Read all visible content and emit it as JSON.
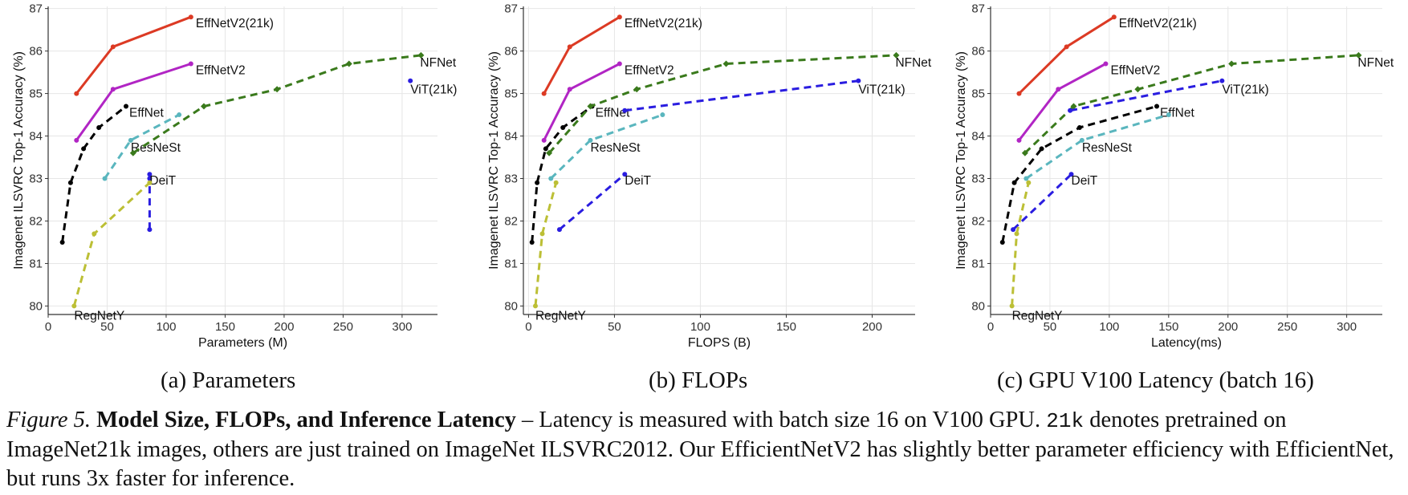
{
  "colors": {
    "EffNetV2(21k)": "#dc3a24",
    "EffNetV2": "#b125c4",
    "EffNet": "#000000",
    "ResNeSt": "#5ab6be",
    "NFNet": "#3a7a1c",
    "ViT(21k)": "#2a1de0",
    "DeiT": "#2a1de0",
    "RegNetY": "#bcbf35",
    "grid": "#e6e6e6",
    "axis": "#333333"
  },
  "chart_data": [
    {
      "type": "line",
      "title": "",
      "xlabel": "Parameters (M)",
      "ylabel": "Imagenet ILSVRC Top-1 Accuracy (%)",
      "xlim": [
        0,
        330
      ],
      "ylim": [
        79.8,
        87.05
      ],
      "xticks": [
        "0",
        "50",
        "100",
        "150",
        "200",
        "250",
        "300"
      ],
      "yticks": [
        "80",
        "81",
        "82",
        "83",
        "84",
        "85",
        "86",
        "87"
      ],
      "series": [
        {
          "name": "EffNetV2(21k)",
          "dashed": false,
          "label_at": "end",
          "x": [
            24,
            55,
            121
          ],
          "y": [
            85.0,
            86.1,
            86.8
          ]
        },
        {
          "name": "EffNetV2",
          "dashed": false,
          "label_at": "end",
          "x": [
            24,
            55,
            121
          ],
          "y": [
            83.9,
            85.1,
            85.7
          ]
        },
        {
          "name": "EffNet",
          "dashed": true,
          "label_at": "end",
          "x": [
            12,
            19,
            30,
            43,
            66
          ],
          "y": [
            81.5,
            82.9,
            83.7,
            84.2,
            84.7
          ]
        },
        {
          "name": "ResNeSt",
          "dashed": true,
          "label_at": "mid",
          "x": [
            48,
            70,
            111
          ],
          "y": [
            83.0,
            83.9,
            84.5
          ]
        },
        {
          "name": "NFNet",
          "dashed": true,
          "label_at": "end",
          "x": [
            72,
            132,
            194,
            255,
            316
          ],
          "y": [
            83.6,
            84.7,
            85.1,
            85.7,
            85.9
          ]
        },
        {
          "name": "ViT(21k)",
          "dashed": true,
          "label_at": "end",
          "x": [
            307
          ],
          "y": [
            85.3
          ]
        },
        {
          "name": "DeiT",
          "dashed": true,
          "label_at": "top",
          "x": [
            86,
            86,
            86
          ],
          "y": [
            81.8,
            83.0,
            83.1
          ]
        },
        {
          "name": "RegNetY",
          "dashed": true,
          "label_at": "start",
          "x": [
            22,
            39,
            86
          ],
          "y": [
            80.0,
            81.7,
            82.9
          ]
        }
      ]
    },
    {
      "type": "line",
      "title": "",
      "xlabel": "FLOPS (B)",
      "ylabel": "Imagenet ILSVRC Top-1 Accuracy (%)",
      "xlim": [
        -3,
        225
      ],
      "ylim": [
        79.8,
        87.05
      ],
      "xticks": [
        "0",
        "50",
        "100",
        "150",
        "200"
      ],
      "yticks": [
        "80",
        "81",
        "82",
        "83",
        "84",
        "85",
        "86",
        "87"
      ],
      "series": [
        {
          "name": "EffNetV2(21k)",
          "dashed": false,
          "label_at": "end",
          "x": [
            9,
            24,
            53
          ],
          "y": [
            85.0,
            86.1,
            86.8
          ]
        },
        {
          "name": "EffNetV2",
          "dashed": false,
          "label_at": "end",
          "x": [
            9,
            24,
            53
          ],
          "y": [
            83.9,
            85.1,
            85.7
          ]
        },
        {
          "name": "EffNet",
          "dashed": true,
          "label_at": "end",
          "x": [
            2,
            5,
            10,
            20,
            37
          ],
          "y": [
            81.5,
            82.9,
            83.7,
            84.2,
            84.7
          ]
        },
        {
          "name": "ResNeSt",
          "dashed": true,
          "label_at": "mid",
          "x": [
            13,
            36,
            78
          ],
          "y": [
            83.0,
            83.9,
            84.5
          ]
        },
        {
          "name": "NFNet",
          "dashed": true,
          "label_at": "end",
          "x": [
            12,
            36,
            63,
            115,
            214
          ],
          "y": [
            83.6,
            84.7,
            85.1,
            85.7,
            85.9
          ]
        },
        {
          "name": "ViT(21k)",
          "dashed": true,
          "label_at": "end",
          "x": [
            56,
            192
          ],
          "y": [
            84.6,
            85.3
          ]
        },
        {
          "name": "DeiT",
          "dashed": true,
          "label_at": "end",
          "x": [
            18,
            56
          ],
          "y": [
            81.8,
            83.1
          ]
        },
        {
          "name": "RegNetY",
          "dashed": true,
          "label_at": "start",
          "x": [
            4,
            8,
            16
          ],
          "y": [
            80.0,
            81.7,
            82.9
          ]
        }
      ]
    },
    {
      "type": "line",
      "title": "",
      "xlabel": "Latency(ms)",
      "ylabel": "Imagenet ILSVRC Top-1 Accuracy (%)",
      "xlim": [
        0,
        330
      ],
      "ylim": [
        79.8,
        87.05
      ],
      "xticks": [
        "0",
        "50",
        "100",
        "150",
        "200",
        "250",
        "300"
      ],
      "yticks": [
        "80",
        "81",
        "82",
        "83",
        "84",
        "85",
        "86",
        "87"
      ],
      "series": [
        {
          "name": "EffNetV2(21k)",
          "dashed": false,
          "label_at": "end",
          "x": [
            24,
            64,
            104
          ],
          "y": [
            85.0,
            86.1,
            86.8
          ]
        },
        {
          "name": "EffNetV2",
          "dashed": false,
          "label_at": "end",
          "x": [
            24,
            57,
            97
          ],
          "y": [
            83.9,
            85.1,
            85.7
          ]
        },
        {
          "name": "EffNet",
          "dashed": true,
          "label_at": "end",
          "x": [
            10,
            20,
            43,
            75,
            140
          ],
          "y": [
            81.5,
            82.9,
            83.7,
            84.2,
            84.7
          ]
        },
        {
          "name": "ResNeSt",
          "dashed": true,
          "label_at": "mid",
          "x": [
            30,
            77,
            150
          ],
          "y": [
            83.0,
            83.9,
            84.5
          ]
        },
        {
          "name": "NFNet",
          "dashed": true,
          "label_at": "end",
          "x": [
            29,
            70,
            124,
            203,
            310
          ],
          "y": [
            83.6,
            84.7,
            85.1,
            85.7,
            85.9
          ]
        },
        {
          "name": "ViT(21k)",
          "dashed": true,
          "label_at": "end",
          "x": [
            67,
            195
          ],
          "y": [
            84.6,
            85.3
          ]
        },
        {
          "name": "DeiT",
          "dashed": true,
          "label_at": "end",
          "x": [
            19,
            68
          ],
          "y": [
            81.8,
            83.1
          ]
        },
        {
          "name": "RegNetY",
          "dashed": true,
          "label_at": "start",
          "x": [
            18,
            22,
            32
          ],
          "y": [
            80.0,
            81.7,
            82.9
          ]
        }
      ]
    }
  ],
  "subcaptions": [
    "(a) Parameters",
    "(b) FLOPs",
    "(c) GPU V100 Latency (batch 16)"
  ],
  "caption": {
    "figure_label": "Figure 5.",
    "bold_title": "Model Size, FLOPs, and Inference Latency",
    "text_1": " – Latency is measured with batch size 16 on V100 GPU. ",
    "code": "21k",
    "text_2": " denotes pretrained on ImageNet21k images, others are just trained on ImageNet ILSVRC2012. Our EfficientNetV2 has slightly better parameter efficiency with EfficientNet, but runs 3x faster for inference."
  }
}
